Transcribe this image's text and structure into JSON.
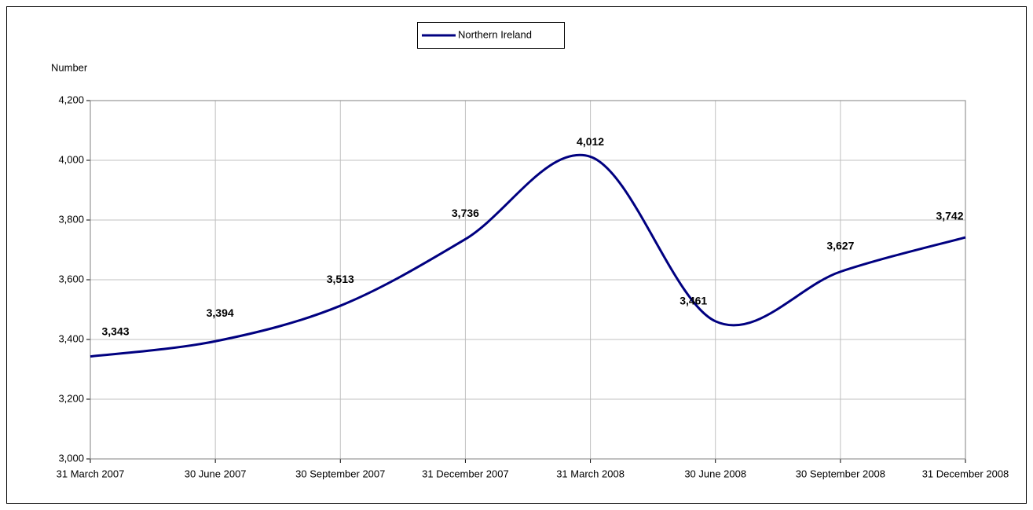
{
  "chart_data": {
    "type": "line",
    "y_label": "Number",
    "categories": [
      "31 March 2007",
      "30 June 2007",
      "30 September 2007",
      "31 December 2007",
      "31 March 2008",
      "30 June 2008",
      "30 September 2008",
      "31 December 2008"
    ],
    "series": [
      {
        "name": "Northern Ireland",
        "color": "#000080",
        "values": [
          3343,
          3394,
          3513,
          3736,
          4012,
          3461,
          3627,
          3742
        ],
        "value_labels": [
          "3,343",
          "3,394",
          "3,513",
          "3,736",
          "4,012",
          "3,461",
          "3,627",
          "3,742"
        ]
      }
    ],
    "ylim": [
      3000,
      4200
    ],
    "yticks": [
      {
        "value": 3000,
        "label": "3,000"
      },
      {
        "value": 3200,
        "label": "3,200"
      },
      {
        "value": 3400,
        "label": "3,400"
      },
      {
        "value": 3600,
        "label": "3,600"
      },
      {
        "value": 3800,
        "label": "3,800"
      },
      {
        "value": 4000,
        "label": "4,000"
      },
      {
        "value": 4200,
        "label": "4,200"
      }
    ],
    "grid": true,
    "smooth": true,
    "legend": "top"
  }
}
